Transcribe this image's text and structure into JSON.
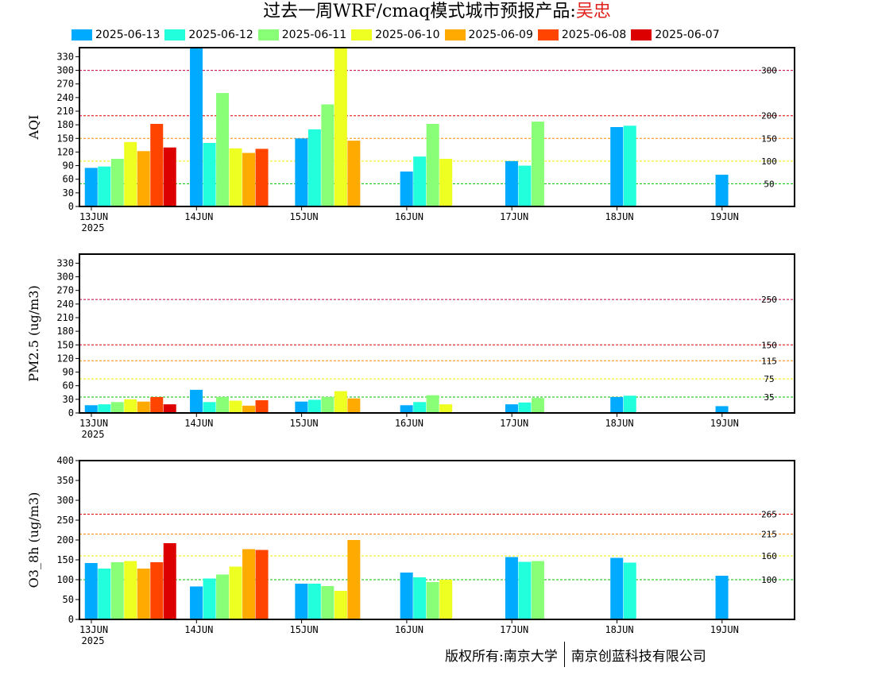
{
  "header": {
    "title_prefix": "过去一周WRF/cmaq模式城市预报产品:",
    "city": "吴忠"
  },
  "legend": [
    {
      "label": "2025-06-13",
      "color": "#00aaff"
    },
    {
      "label": "2025-06-12",
      "color": "#22ffdd"
    },
    {
      "label": "2025-06-11",
      "color": "#88ff77"
    },
    {
      "label": "2025-06-10",
      "color": "#eeff22"
    },
    {
      "label": "2025-06-09",
      "color": "#ffaa00"
    },
    {
      "label": "2025-06-08",
      "color": "#ff4400"
    },
    {
      "label": "2025-06-07",
      "color": "#dd0000"
    }
  ],
  "footer": {
    "left": "版权所有:南京大学",
    "right": "南京创蓝科技有限公司"
  },
  "chart_data": [
    {
      "type": "bar",
      "ylabel": "AQI",
      "ylim": [
        0,
        350
      ],
      "yticks": [
        0,
        30,
        60,
        90,
        120,
        150,
        180,
        210,
        240,
        270,
        300,
        330
      ],
      "x_categories": [
        "13JUN",
        "14JUN",
        "15JUN",
        "16JUN",
        "17JUN",
        "18JUN",
        "19JUN"
      ],
      "year_label": "2025",
      "thresholds": [
        {
          "value": 300,
          "label": "300",
          "color": "#c0003a"
        },
        {
          "value": 200,
          "label": "200",
          "color": "#e00000"
        },
        {
          "value": 150,
          "label": "150",
          "color": "#ff8800"
        },
        {
          "value": 100,
          "label": "100",
          "color": "#eeee00"
        },
        {
          "value": 50,
          "label": "50",
          "color": "#00c000"
        }
      ],
      "series": [
        {
          "name": "2025-06-13",
          "values": [
            85,
            350,
            150,
            77,
            100,
            175,
            70
          ]
        },
        {
          "name": "2025-06-12",
          "values": [
            88,
            140,
            170,
            110,
            90,
            178,
            null
          ]
        },
        {
          "name": "2025-06-11",
          "values": [
            105,
            250,
            225,
            182,
            187,
            null,
            null
          ]
        },
        {
          "name": "2025-06-10",
          "values": [
            142,
            128,
            350,
            105,
            null,
            null,
            null
          ]
        },
        {
          "name": "2025-06-09",
          "values": [
            122,
            118,
            145,
            null,
            null,
            null,
            null
          ]
        },
        {
          "name": "2025-06-08",
          "values": [
            182,
            127,
            null,
            null,
            null,
            null,
            null
          ]
        },
        {
          "name": "2025-06-07",
          "values": [
            130,
            null,
            null,
            null,
            null,
            null,
            null
          ]
        }
      ]
    },
    {
      "type": "bar",
      "ylabel": "PM2.5 (ug/m3)",
      "ylim": [
        0,
        350
      ],
      "yticks": [
        0,
        30,
        60,
        90,
        120,
        150,
        180,
        210,
        240,
        270,
        300,
        330
      ],
      "x_categories": [
        "13JUN",
        "14JUN",
        "15JUN",
        "16JUN",
        "17JUN",
        "18JUN",
        "19JUN"
      ],
      "year_label": "2025",
      "thresholds": [
        {
          "value": 250,
          "label": "250",
          "color": "#c0003a"
        },
        {
          "value": 150,
          "label": "150",
          "color": "#e00000"
        },
        {
          "value": 115,
          "label": "115",
          "color": "#ff8800"
        },
        {
          "value": 75,
          "label": "75",
          "color": "#eeee00"
        },
        {
          "value": 35,
          "label": "35",
          "color": "#00c000"
        }
      ],
      "series": [
        {
          "name": "2025-06-13",
          "values": [
            17,
            51,
            25,
            17,
            19,
            35,
            15
          ]
        },
        {
          "name": "2025-06-12",
          "values": [
            19,
            24,
            29,
            24,
            23,
            38,
            null
          ]
        },
        {
          "name": "2025-06-11",
          "values": [
            24,
            35,
            35,
            39,
            33,
            null,
            null
          ]
        },
        {
          "name": "2025-06-10",
          "values": [
            30,
            27,
            48,
            19,
            null,
            null,
            null
          ]
        },
        {
          "name": "2025-06-09",
          "values": [
            25,
            16,
            32,
            null,
            null,
            null,
            null
          ]
        },
        {
          "name": "2025-06-08",
          "values": [
            35,
            28,
            null,
            null,
            null,
            null,
            null
          ]
        },
        {
          "name": "2025-06-07",
          "values": [
            19,
            null,
            null,
            null,
            null,
            null,
            null
          ]
        }
      ]
    },
    {
      "type": "bar",
      "ylabel": "O3_8h (ug/m3)",
      "ylim": [
        0,
        400
      ],
      "yticks": [
        0,
        50,
        100,
        150,
        200,
        250,
        300,
        350,
        400
      ],
      "x_categories": [
        "13JUN",
        "14JUN",
        "15JUN",
        "16JUN",
        "17JUN",
        "18JUN",
        "19JUN"
      ],
      "year_label": "2025",
      "thresholds": [
        {
          "value": 265,
          "label": "265",
          "color": "#e00000"
        },
        {
          "value": 215,
          "label": "215",
          "color": "#ff8800"
        },
        {
          "value": 160,
          "label": "160",
          "color": "#eeee00"
        },
        {
          "value": 100,
          "label": "100",
          "color": "#00c000"
        }
      ],
      "series": [
        {
          "name": "2025-06-13",
          "values": [
            142,
            83,
            90,
            118,
            157,
            155,
            110
          ]
        },
        {
          "name": "2025-06-12",
          "values": [
            128,
            103,
            90,
            106,
            145,
            143,
            null
          ]
        },
        {
          "name": "2025-06-11",
          "values": [
            144,
            113,
            84,
            94,
            147,
            null,
            null
          ]
        },
        {
          "name": "2025-06-10",
          "values": [
            147,
            133,
            72,
            100,
            null,
            null,
            null
          ]
        },
        {
          "name": "2025-06-09",
          "values": [
            128,
            177,
            200,
            null,
            null,
            null,
            null
          ]
        },
        {
          "name": "2025-06-08",
          "values": [
            144,
            175,
            null,
            null,
            null,
            null,
            null
          ]
        },
        {
          "name": "2025-06-07",
          "values": [
            192,
            null,
            null,
            null,
            null,
            null,
            null
          ]
        }
      ]
    }
  ]
}
